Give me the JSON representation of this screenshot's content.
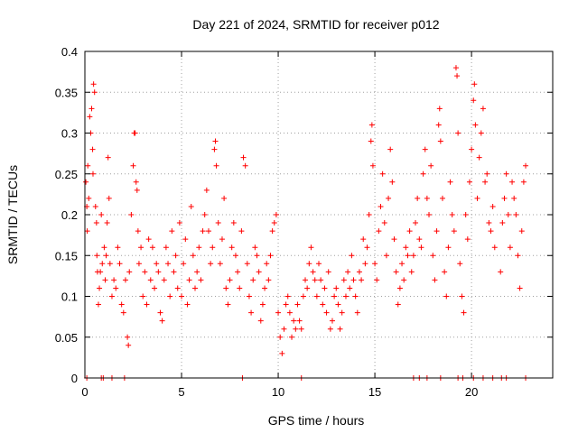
{
  "chart_data": {
    "type": "scatter",
    "title": "Day 221 of 2024, SRMTID for receiver p012",
    "xlabel": "GPS time / hours",
    "ylabel": "SRMTID / TECUs",
    "xlim": [
      0,
      24.2
    ],
    "ylim": [
      0,
      0.4
    ],
    "xticks": [
      0,
      5,
      10,
      15,
      20
    ],
    "yticks": [
      0,
      0.05,
      0.1,
      0.15,
      0.2,
      0.25,
      0.3,
      0.35,
      0.4
    ],
    "xtick_labels": [
      "0",
      "5",
      "10",
      "15",
      "20"
    ],
    "ytick_labels": [
      "0",
      "0.05",
      "0.1",
      "0.15",
      "0.2",
      "0.25",
      "0.3",
      "0.35",
      "0.4"
    ],
    "grid": true,
    "legend": "none",
    "marker": "+",
    "color": "#ff0000",
    "series": [
      {
        "name": "SRMTID",
        "points": [
          [
            0.05,
            0.24
          ],
          [
            0.1,
            0.21
          ],
          [
            0.12,
            0.18
          ],
          [
            0.15,
            0.26
          ],
          [
            0.2,
            0.22
          ],
          [
            0.25,
            0.32
          ],
          [
            0.3,
            0.3
          ],
          [
            0.35,
            0.33
          ],
          [
            0.4,
            0.28
          ],
          [
            0.42,
            0.25
          ],
          [
            0.45,
            0.36
          ],
          [
            0.5,
            0.35
          ],
          [
            0.55,
            0.21
          ],
          [
            0.6,
            0.19
          ],
          [
            0.62,
            0.15
          ],
          [
            0.65,
            0.13
          ],
          [
            0.7,
            0.09
          ],
          [
            0.75,
            0.11
          ],
          [
            0.8,
            0.13
          ],
          [
            0.85,
            0.2
          ],
          [
            0.9,
            0.14
          ],
          [
            1.0,
            0.16
          ],
          [
            1.05,
            0.12
          ],
          [
            1.1,
            0.15
          ],
          [
            1.15,
            0.19
          ],
          [
            1.2,
            0.27
          ],
          [
            1.25,
            0.22
          ],
          [
            1.3,
            0.14
          ],
          [
            1.4,
            0.1
          ],
          [
            1.5,
            0.12
          ],
          [
            1.6,
            0.11
          ],
          [
            1.7,
            0.16
          ],
          [
            1.8,
            0.14
          ],
          [
            1.9,
            0.09
          ],
          [
            2.0,
            0.08
          ],
          [
            2.1,
            0.12
          ],
          [
            2.2,
            0.05
          ],
          [
            2.25,
            0.04
          ],
          [
            2.3,
            0.13
          ],
          [
            2.4,
            0.2
          ],
          [
            2.5,
            0.26
          ],
          [
            2.55,
            0.3
          ],
          [
            2.6,
            0.3
          ],
          [
            2.65,
            0.24
          ],
          [
            2.7,
            0.23
          ],
          [
            2.75,
            0.18
          ],
          [
            2.8,
            0.14
          ],
          [
            2.9,
            0.16
          ],
          [
            3.0,
            0.1
          ],
          [
            3.1,
            0.13
          ],
          [
            3.2,
            0.09
          ],
          [
            3.3,
            0.17
          ],
          [
            3.4,
            0.12
          ],
          [
            3.5,
            0.16
          ],
          [
            3.6,
            0.11
          ],
          [
            3.7,
            0.14
          ],
          [
            3.8,
            0.13
          ],
          [
            3.9,
            0.08
          ],
          [
            4.0,
            0.07
          ],
          [
            4.1,
            0.12
          ],
          [
            4.2,
            0.16
          ],
          [
            4.3,
            0.14
          ],
          [
            4.4,
            0.1
          ],
          [
            4.5,
            0.18
          ],
          [
            4.6,
            0.13
          ],
          [
            4.7,
            0.15
          ],
          [
            4.8,
            0.11
          ],
          [
            4.9,
            0.19
          ],
          [
            5.0,
            0.1
          ],
          [
            5.1,
            0.14
          ],
          [
            5.2,
            0.17
          ],
          [
            5.3,
            0.09
          ],
          [
            5.4,
            0.12
          ],
          [
            5.5,
            0.21
          ],
          [
            5.6,
            0.15
          ],
          [
            5.7,
            0.11
          ],
          [
            5.8,
            0.13
          ],
          [
            5.9,
            0.16
          ],
          [
            6.0,
            0.12
          ],
          [
            6.1,
            0.18
          ],
          [
            6.2,
            0.2
          ],
          [
            6.3,
            0.23
          ],
          [
            6.4,
            0.18
          ],
          [
            6.5,
            0.14
          ],
          [
            6.6,
            0.16
          ],
          [
            6.7,
            0.28
          ],
          [
            6.75,
            0.29
          ],
          [
            6.8,
            0.26
          ],
          [
            6.9,
            0.19
          ],
          [
            7.0,
            0.14
          ],
          [
            7.1,
            0.17
          ],
          [
            7.2,
            0.22
          ],
          [
            7.3,
            0.11
          ],
          [
            7.4,
            0.09
          ],
          [
            7.5,
            0.12
          ],
          [
            7.6,
            0.16
          ],
          [
            7.7,
            0.19
          ],
          [
            7.8,
            0.15
          ],
          [
            7.9,
            0.13
          ],
          [
            8.0,
            0.11
          ],
          [
            8.1,
            0.18
          ],
          [
            8.2,
            0.27
          ],
          [
            8.3,
            0.26
          ],
          [
            8.4,
            0.14
          ],
          [
            8.5,
            0.1
          ],
          [
            8.6,
            0.08
          ],
          [
            8.7,
            0.12
          ],
          [
            8.8,
            0.16
          ],
          [
            8.9,
            0.15
          ],
          [
            9.0,
            0.13
          ],
          [
            9.1,
            0.07
          ],
          [
            9.2,
            0.09
          ],
          [
            9.3,
            0.11
          ],
          [
            9.4,
            0.14
          ],
          [
            9.5,
            0.12
          ],
          [
            9.6,
            0.15
          ],
          [
            9.7,
            0.18
          ],
          [
            9.8,
            0.19
          ],
          [
            9.9,
            0.2
          ],
          [
            10.0,
            0.08
          ],
          [
            10.1,
            0.05
          ],
          [
            10.2,
            0.03
          ],
          [
            10.3,
            0.06
          ],
          [
            10.4,
            0.09
          ],
          [
            10.5,
            0.1
          ],
          [
            10.6,
            0.08
          ],
          [
            10.7,
            0.05
          ],
          [
            10.8,
            0.07
          ],
          [
            10.9,
            0.06
          ],
          [
            11.0,
            0.09
          ],
          [
            11.1,
            0.07
          ],
          [
            11.2,
            0.06
          ],
          [
            11.3,
            0.1
          ],
          [
            11.4,
            0.12
          ],
          [
            11.5,
            0.11
          ],
          [
            11.6,
            0.14
          ],
          [
            11.7,
            0.16
          ],
          [
            11.8,
            0.13
          ],
          [
            11.9,
            0.12
          ],
          [
            12.0,
            0.1
          ],
          [
            12.1,
            0.14
          ],
          [
            12.2,
            0.12
          ],
          [
            12.3,
            0.09
          ],
          [
            12.4,
            0.11
          ],
          [
            12.5,
            0.08
          ],
          [
            12.6,
            0.13
          ],
          [
            12.7,
            0.06
          ],
          [
            12.8,
            0.07
          ],
          [
            12.9,
            0.1
          ],
          [
            13.0,
            0.11
          ],
          [
            13.1,
            0.09
          ],
          [
            13.2,
            0.06
          ],
          [
            13.3,
            0.08
          ],
          [
            13.4,
            0.12
          ],
          [
            13.5,
            0.1
          ],
          [
            13.6,
            0.13
          ],
          [
            13.7,
            0.11
          ],
          [
            13.8,
            0.15
          ],
          [
            13.9,
            0.12
          ],
          [
            14.0,
            0.1
          ],
          [
            14.1,
            0.08
          ],
          [
            14.2,
            0.13
          ],
          [
            14.3,
            0.12
          ],
          [
            14.4,
            0.17
          ],
          [
            14.5,
            0.14
          ],
          [
            14.6,
            0.16
          ],
          [
            14.7,
            0.2
          ],
          [
            14.8,
            0.29
          ],
          [
            14.85,
            0.31
          ],
          [
            14.9,
            0.26
          ],
          [
            15.0,
            0.14
          ],
          [
            15.1,
            0.12
          ],
          [
            15.2,
            0.18
          ],
          [
            15.3,
            0.21
          ],
          [
            15.4,
            0.25
          ],
          [
            15.5,
            0.19
          ],
          [
            15.6,
            0.15
          ],
          [
            15.7,
            0.22
          ],
          [
            15.8,
            0.28
          ],
          [
            15.9,
            0.24
          ],
          [
            16.0,
            0.17
          ],
          [
            16.1,
            0.13
          ],
          [
            16.2,
            0.09
          ],
          [
            16.3,
            0.11
          ],
          [
            16.4,
            0.14
          ],
          [
            16.5,
            0.12
          ],
          [
            16.6,
            0.16
          ],
          [
            16.7,
            0.15
          ],
          [
            16.8,
            0.18
          ],
          [
            16.9,
            0.13
          ],
          [
            17.0,
            0.15
          ],
          [
            17.1,
            0.19
          ],
          [
            17.2,
            0.22
          ],
          [
            17.3,
            0.17
          ],
          [
            17.4,
            0.16
          ],
          [
            17.5,
            0.25
          ],
          [
            17.6,
            0.28
          ],
          [
            17.7,
            0.22
          ],
          [
            17.8,
            0.2
          ],
          [
            17.9,
            0.26
          ],
          [
            18.0,
            0.15
          ],
          [
            18.1,
            0.12
          ],
          [
            18.2,
            0.18
          ],
          [
            18.3,
            0.31
          ],
          [
            18.35,
            0.33
          ],
          [
            18.4,
            0.29
          ],
          [
            18.5,
            0.22
          ],
          [
            18.6,
            0.13
          ],
          [
            18.7,
            0.1
          ],
          [
            18.8,
            0.16
          ],
          [
            18.9,
            0.24
          ],
          [
            19.0,
            0.2
          ],
          [
            19.1,
            0.18
          ],
          [
            19.2,
            0.38
          ],
          [
            19.25,
            0.37
          ],
          [
            19.3,
            0.3
          ],
          [
            19.4,
            0.14
          ],
          [
            19.5,
            0.1
          ],
          [
            19.6,
            0.08
          ],
          [
            19.7,
            0.2
          ],
          [
            19.8,
            0.17
          ],
          [
            19.9,
            0.24
          ],
          [
            20.0,
            0.28
          ],
          [
            20.1,
            0.34
          ],
          [
            20.15,
            0.36
          ],
          [
            20.2,
            0.31
          ],
          [
            20.3,
            0.22
          ],
          [
            20.4,
            0.27
          ],
          [
            20.5,
            0.3
          ],
          [
            20.6,
            0.33
          ],
          [
            20.7,
            0.24
          ],
          [
            20.8,
            0.25
          ],
          [
            20.9,
            0.19
          ],
          [
            21.0,
            0.18
          ],
          [
            21.1,
            0.21
          ],
          [
            21.2,
            0.16
          ],
          [
            21.5,
            0.13
          ],
          [
            21.6,
            0.19
          ],
          [
            21.7,
            0.22
          ],
          [
            21.8,
            0.25
          ],
          [
            21.9,
            0.2
          ],
          [
            22.0,
            0.16
          ],
          [
            22.1,
            0.24
          ],
          [
            22.2,
            0.22
          ],
          [
            22.3,
            0.2
          ],
          [
            22.4,
            0.15
          ],
          [
            22.5,
            0.11
          ],
          [
            22.6,
            0.18
          ],
          [
            22.7,
            0.24
          ],
          [
            22.8,
            0.26
          ],
          [
            0.1,
            0
          ],
          [
            0.85,
            0
          ],
          [
            0.95,
            0
          ],
          [
            1.4,
            0
          ],
          [
            2.05,
            0
          ],
          [
            8.15,
            0
          ],
          [
            11.2,
            0
          ],
          [
            17.0,
            0
          ],
          [
            17.3,
            0
          ],
          [
            17.7,
            0
          ],
          [
            18.4,
            0
          ],
          [
            19.3,
            0
          ],
          [
            19.55,
            0
          ],
          [
            20.1,
            0
          ],
          [
            20.6,
            0
          ],
          [
            21.1,
            0
          ],
          [
            21.55,
            0
          ],
          [
            21.8,
            0
          ],
          [
            22.8,
            0
          ]
        ]
      }
    ]
  }
}
